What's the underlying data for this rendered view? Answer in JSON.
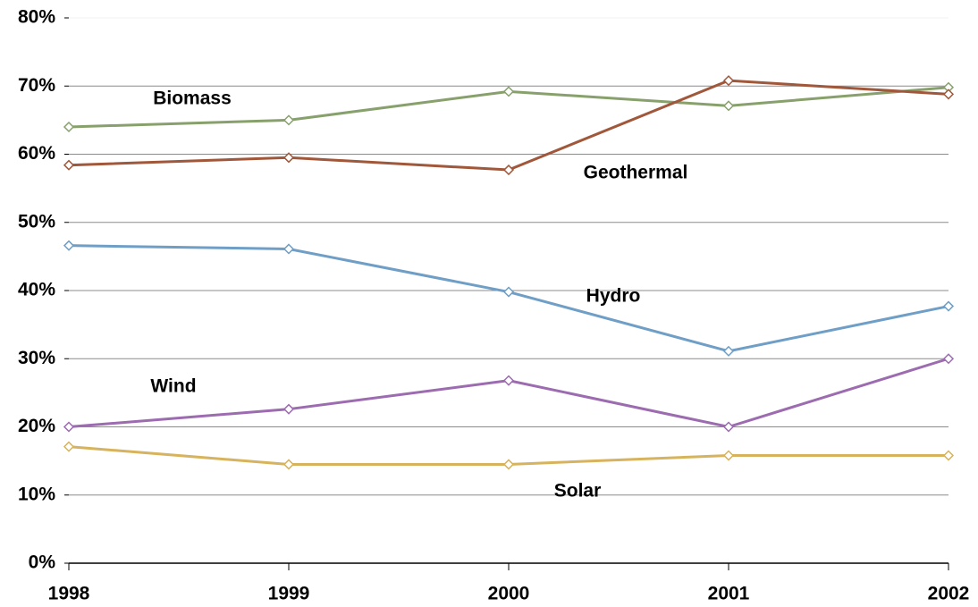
{
  "chart_data": {
    "type": "line",
    "categories": [
      "1998",
      "1999",
      "2000",
      "2001",
      "2002"
    ],
    "series": [
      {
        "name": "Biomass",
        "color": "#87a06c",
        "values": [
          64.0,
          65.0,
          69.2,
          67.1,
          69.8
        ]
      },
      {
        "name": "Geothermal",
        "color": "#a0573a",
        "values": [
          58.4,
          59.5,
          57.7,
          70.8,
          68.8
        ]
      },
      {
        "name": "Hydro",
        "color": "#6f9ec6",
        "values": [
          46.6,
          46.1,
          39.8,
          31.1,
          37.7
        ]
      },
      {
        "name": "Wind",
        "color": "#9c6bb0",
        "values": [
          20.0,
          22.6,
          26.8,
          20.0,
          30.0
        ]
      },
      {
        "name": "Solar",
        "color": "#d6b35c",
        "values": [
          17.1,
          14.5,
          14.5,
          15.8,
          15.8
        ]
      }
    ],
    "ylim": [
      0,
      80
    ],
    "yticks": [
      {
        "value": 0,
        "label": "0%"
      },
      {
        "value": 10,
        "label": "10%"
      },
      {
        "value": 20,
        "label": "20%"
      },
      {
        "value": 30,
        "label": "30%"
      },
      {
        "value": 40,
        "label": "40%"
      },
      {
        "value": 50,
        "label": "50%"
      },
      {
        "value": 60,
        "label": "60%"
      },
      {
        "value": 70,
        "label": "70%"
      },
      {
        "value": 80,
        "label": "80%"
      }
    ],
    "grid": true
  }
}
